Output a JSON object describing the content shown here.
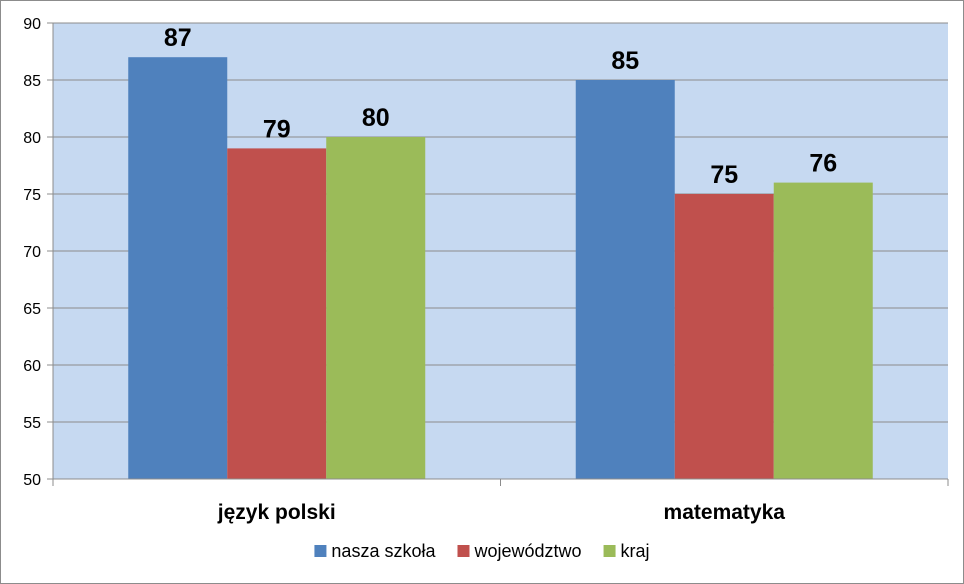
{
  "chart_data": {
    "type": "bar",
    "categories": [
      "język polski",
      "matematyka"
    ],
    "series": [
      {
        "name": "nasza szkoła",
        "values": [
          87,
          85
        ],
        "color": "#4F81BD"
      },
      {
        "name": "województwo",
        "values": [
          79,
          75
        ],
        "color": "#C0504D"
      },
      {
        "name": "kraj",
        "values": [
          80,
          76
        ],
        "color": "#9BBB59"
      }
    ],
    "ylim": [
      50,
      90
    ],
    "yticks": [
      50,
      55,
      60,
      65,
      70,
      75,
      80,
      85,
      90
    ],
    "grid": true,
    "legend_position": "bottom",
    "plot_background": "#C6D9F1",
    "data_labels": true
  }
}
